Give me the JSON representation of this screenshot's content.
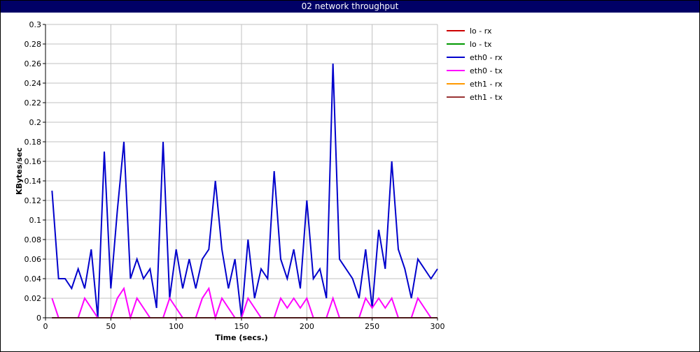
{
  "window": {
    "title": "02 network throughput"
  },
  "colors": {
    "titlebar": "#000066",
    "grid": "#c0c0c0"
  },
  "chart_data": {
    "type": "line",
    "title": "02 network throughput",
    "xlabel": "Time (secs.)",
    "ylabel": "KBytes/sec",
    "xlim": [
      0,
      300
    ],
    "ylim": [
      0,
      0.3
    ],
    "xticks": [
      0,
      50,
      100,
      150,
      200,
      250,
      300
    ],
    "yticks": [
      0,
      0.02,
      0.04,
      0.06,
      0.08,
      0.1,
      0.12,
      0.14,
      0.16,
      0.18,
      0.2,
      0.22,
      0.24,
      0.26,
      0.28,
      0.3
    ],
    "grid": true,
    "legend_position": "right",
    "x": [
      5,
      10,
      15,
      20,
      25,
      30,
      35,
      40,
      45,
      50,
      55,
      60,
      65,
      70,
      75,
      80,
      85,
      90,
      95,
      100,
      105,
      110,
      115,
      120,
      125,
      130,
      135,
      140,
      145,
      150,
      155,
      160,
      165,
      170,
      175,
      180,
      185,
      190,
      195,
      200,
      205,
      210,
      215,
      220,
      225,
      230,
      235,
      240,
      245,
      250,
      255,
      260,
      265,
      270,
      275,
      280,
      285,
      290,
      295,
      300
    ],
    "series": [
      {
        "name": "lo - rx",
        "color": "#cc0000",
        "values": [
          0,
          0,
          0,
          0,
          0,
          0,
          0,
          0,
          0,
          0,
          0,
          0,
          0,
          0,
          0,
          0,
          0,
          0,
          0,
          0,
          0,
          0,
          0,
          0,
          0,
          0,
          0,
          0,
          0,
          0,
          0,
          0,
          0,
          0,
          0,
          0,
          0,
          0,
          0,
          0,
          0,
          0,
          0,
          0,
          0,
          0,
          0,
          0,
          0,
          0,
          0,
          0,
          0,
          0,
          0,
          0,
          0,
          0,
          0,
          0
        ]
      },
      {
        "name": "lo - tx",
        "color": "#009900",
        "values": [
          0,
          0,
          0,
          0,
          0,
          0,
          0,
          0,
          0,
          0,
          0,
          0,
          0,
          0,
          0,
          0,
          0,
          0,
          0,
          0,
          0,
          0,
          0,
          0,
          0,
          0,
          0,
          0,
          0,
          0,
          0,
          0,
          0,
          0,
          0,
          0,
          0,
          0,
          0,
          0,
          0,
          0,
          0,
          0,
          0,
          0,
          0,
          0,
          0,
          0,
          0,
          0,
          0,
          0,
          0,
          0,
          0,
          0,
          0,
          0
        ]
      },
      {
        "name": "eth0 - rx",
        "color": "#0000cc",
        "values": [
          0.13,
          0.04,
          0.04,
          0.03,
          0.05,
          0.03,
          0.07,
          0.0,
          0.17,
          0.03,
          0.11,
          0.18,
          0.04,
          0.06,
          0.04,
          0.05,
          0.01,
          0.18,
          0.02,
          0.07,
          0.03,
          0.06,
          0.03,
          0.06,
          0.07,
          0.14,
          0.07,
          0.03,
          0.06,
          0.0,
          0.08,
          0.02,
          0.05,
          0.04,
          0.15,
          0.06,
          0.04,
          0.07,
          0.03,
          0.12,
          0.04,
          0.05,
          0.02,
          0.26,
          0.06,
          0.05,
          0.04,
          0.02,
          0.07,
          0.01,
          0.09,
          0.05,
          0.16,
          0.07,
          0.05,
          0.02,
          0.06,
          0.05,
          0.04,
          0.05
        ]
      },
      {
        "name": "eth0 - tx",
        "color": "#ff00ff",
        "values": [
          0.02,
          0,
          0,
          0,
          0,
          0.02,
          0.01,
          0,
          0,
          0,
          0.02,
          0.03,
          0,
          0.02,
          0.01,
          0,
          0,
          0,
          0.02,
          0.01,
          0,
          0,
          0,
          0.02,
          0.03,
          0,
          0.02,
          0.01,
          0,
          0,
          0.02,
          0.01,
          0,
          0,
          0,
          0.02,
          0.01,
          0.02,
          0.01,
          0.02,
          0,
          0,
          0,
          0.02,
          0,
          0,
          0,
          0,
          0.02,
          0.01,
          0.02,
          0.01,
          0.02,
          0,
          0,
          0,
          0.02,
          0.01,
          0,
          0
        ]
      },
      {
        "name": "eth1 - rx",
        "color": "#ff9900",
        "values": [
          0,
          0,
          0,
          0,
          0,
          0,
          0,
          0,
          0,
          0,
          0,
          0,
          0,
          0,
          0,
          0,
          0,
          0,
          0,
          0,
          0,
          0,
          0,
          0,
          0,
          0,
          0,
          0,
          0,
          0,
          0,
          0,
          0,
          0,
          0,
          0,
          0,
          0,
          0,
          0,
          0,
          0,
          0,
          0,
          0,
          0,
          0,
          0,
          0,
          0,
          0,
          0,
          0,
          0,
          0,
          0,
          0,
          0,
          0,
          0
        ]
      },
      {
        "name": "eth1 - tx",
        "color": "#993333",
        "values": [
          0,
          0,
          0,
          0,
          0,
          0,
          0,
          0,
          0,
          0,
          0,
          0,
          0,
          0,
          0,
          0,
          0,
          0,
          0,
          0,
          0,
          0,
          0,
          0,
          0,
          0,
          0,
          0,
          0,
          0,
          0,
          0,
          0,
          0,
          0,
          0,
          0,
          0,
          0,
          0,
          0,
          0,
          0,
          0,
          0,
          0,
          0,
          0,
          0,
          0,
          0,
          0,
          0,
          0,
          0,
          0,
          0,
          0,
          0,
          0
        ]
      }
    ]
  }
}
